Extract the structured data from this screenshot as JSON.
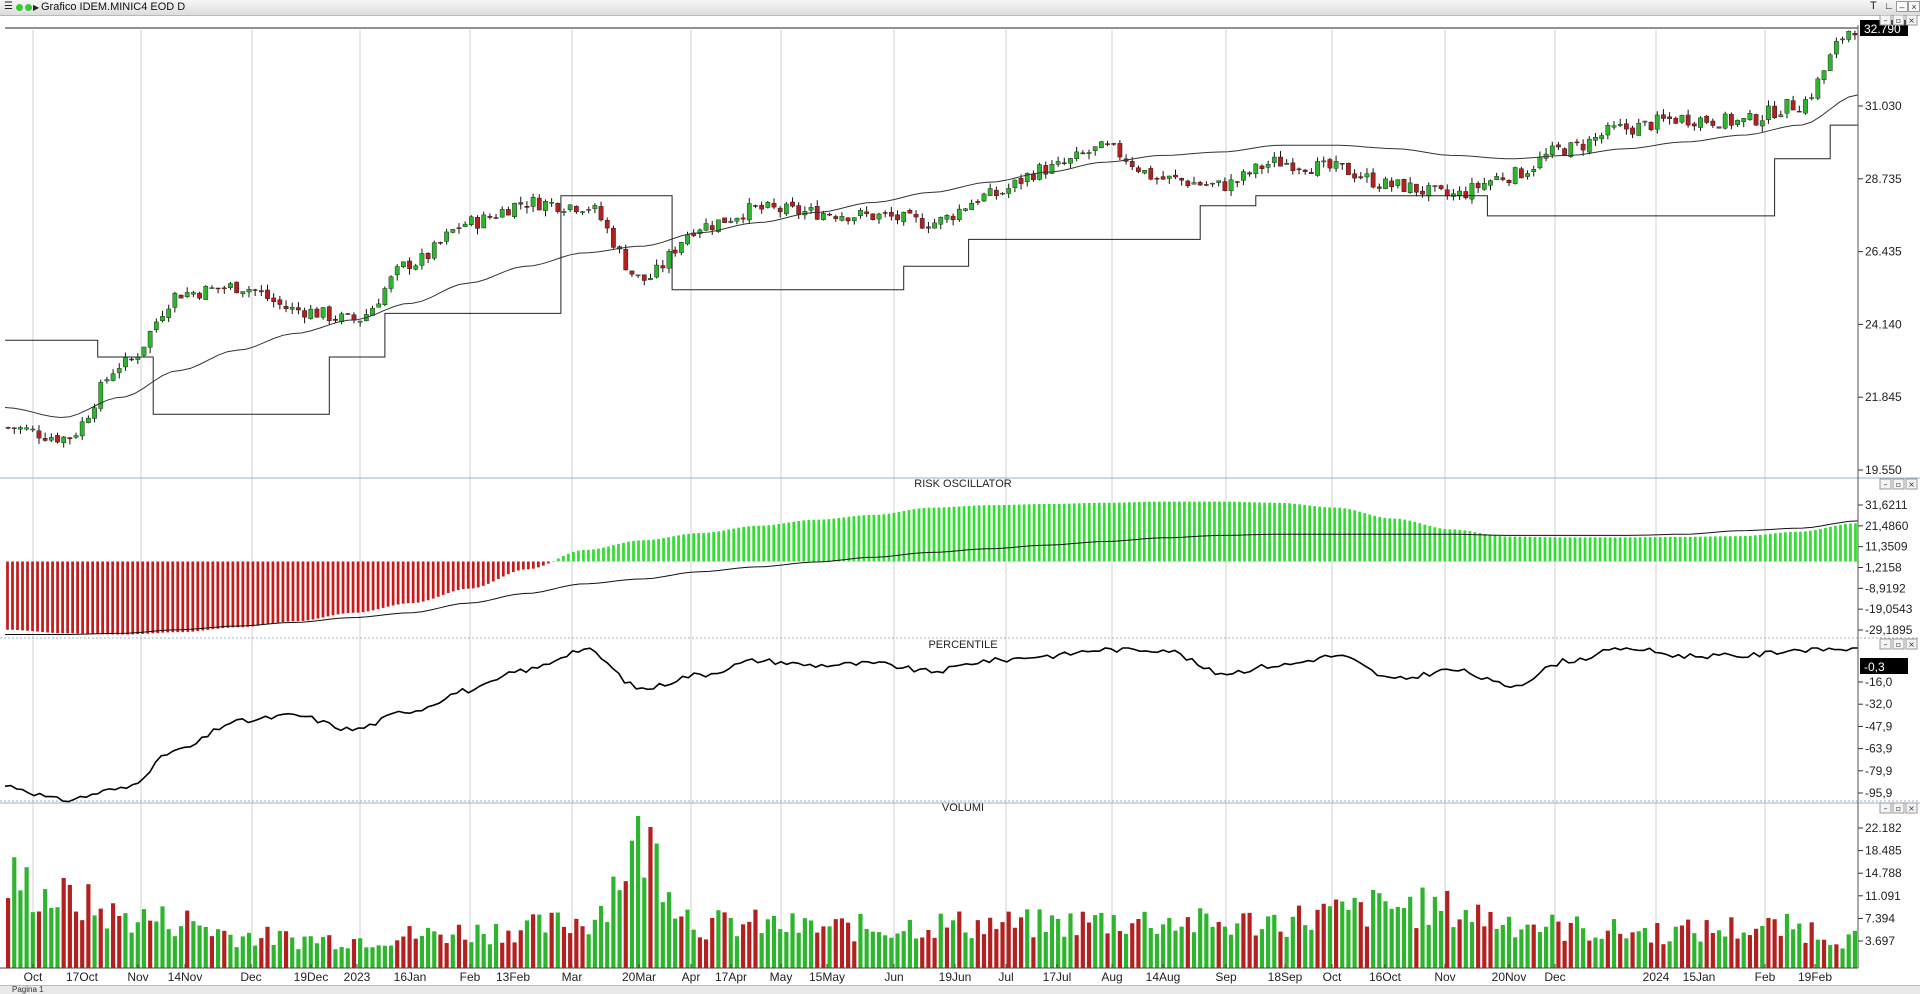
{
  "window": {
    "title": "Grafico IDEM.MINIC4 EOD D",
    "tab_label": "Pagina 1"
  },
  "colors": {
    "up": "#2db52d",
    "down": "#b22020",
    "osc_pos": "#33dd33",
    "osc_neg": "#c41c1c",
    "line": "#000000",
    "grid": "#d0d0d0",
    "separator": "#9ab3c9"
  },
  "price_panel": {
    "ymin": 19.55,
    "ymax": 32.79,
    "y_labels": [
      "31.030",
      "28.735",
      "26.435",
      "24.140",
      "21.845",
      "19.550"
    ],
    "last_price_label": "32.790"
  },
  "oscillator_panel": {
    "title": "RISK OSCILLATOR",
    "y_labels": [
      "31,6211",
      "21,4860",
      "11,3509",
      "1,2158",
      "-8,9192",
      "-19,0543",
      "-29,1895"
    ]
  },
  "percentile_panel": {
    "title": "PERCENTILE",
    "y_labels": [
      "-16,0",
      "-32,0",
      "-47,9",
      "-63,9",
      "-79,9",
      "-95,9"
    ],
    "last_value_label": "-0,3"
  },
  "volume_panel": {
    "title": "VOLUMI",
    "y_labels": [
      "22.182",
      "18.485",
      "14.788",
      "11.091",
      "7.394",
      "3.697"
    ]
  },
  "x_axis": {
    "labels": [
      "Oct",
      "17Oct",
      "Nov",
      "14Nov",
      "Dec",
      "19Dec",
      "2023",
      "16Jan",
      "Feb",
      "13Feb",
      "Mar",
      "20Mar",
      "Apr",
      "17Apr",
      "May",
      "15May",
      "Jun",
      "19Jun",
      "Jul",
      "17Jul",
      "Aug",
      "14Aug",
      "Sep",
      "18Sep",
      "Oct",
      "16Oct",
      "Nov",
      "20Nov",
      "Dec",
      "2024",
      "15Jan",
      "Feb",
      "19Feb"
    ]
  },
  "chart_data": [
    {
      "type": "candlestick",
      "title": "Grafico IDEM.MINIC4 EOD D",
      "x": [
        "Oct",
        "17Oct",
        "Nov",
        "14Nov",
        "Dec",
        "19Dec",
        "2023",
        "16Jan",
        "Feb",
        "13Feb",
        "Mar",
        "20Mar",
        "Apr",
        "17Apr",
        "May",
        "15May",
        "Jun",
        "19Jun",
        "Jul",
        "17Jul",
        "Aug",
        "14Aug",
        "Sep",
        "18Sep",
        "Oct",
        "16Oct",
        "Nov",
        "20Nov",
        "Dec",
        "2024",
        "15Jan",
        "Feb",
        "19Feb"
      ],
      "series": [
        {
          "values": [
            20.9,
            20.6,
            22.8,
            24.9,
            25.1,
            24.4,
            24.1,
            25.8,
            27.0,
            27.6,
            27.5,
            25.3,
            26.9,
            27.4,
            27.3,
            27.2,
            27.0,
            27.8,
            28.6,
            29.2,
            28.3,
            28.1,
            28.8,
            28.6,
            28.1,
            27.8,
            28.4,
            29.2,
            29.8,
            30.1,
            30.0,
            30.5,
            32.8
          ]
        },
        {
          "values": [
            21.5,
            21.2,
            21.8,
            22.6,
            23.2,
            23.7,
            24.1,
            24.6,
            25.2,
            25.7,
            26.1,
            26.3,
            26.7,
            27.0,
            27.3,
            27.6,
            27.9,
            28.2,
            28.5,
            28.8,
            29.0,
            29.1,
            29.3,
            29.3,
            29.2,
            29.0,
            28.9,
            29.0,
            29.2,
            29.4,
            29.6,
            29.9,
            30.8
          ]
        },
        {
          "values": [
            23.5,
            23.5,
            23.0,
            21.3,
            21.3,
            21.3,
            23.0,
            24.3,
            24.3,
            24.3,
            27.8,
            27.8,
            25.0,
            25.0,
            25.0,
            25.0,
            25.7,
            26.5,
            26.5,
            26.5,
            26.5,
            27.5,
            27.8,
            27.8,
            27.8,
            27.8,
            27.2,
            27.2,
            27.2,
            27.2,
            27.2,
            28.9,
            29.9
          ]
        }
      ]
    },
    {
      "type": "bar",
      "title": "RISK OSCILLATOR",
      "x": [
        "Oct",
        "17Oct",
        "Nov",
        "14Nov",
        "Dec",
        "19Dec",
        "2023",
        "16Jan",
        "Feb",
        "13Feb",
        "Mar",
        "20Mar",
        "Apr",
        "17Apr",
        "May",
        "15May",
        "Jun",
        "19Jun",
        "Jul",
        "17Jul",
        "Aug",
        "14Aug",
        "Sep",
        "18Sep",
        "Oct",
        "16Oct",
        "Nov",
        "20Nov",
        "Dec",
        "2024",
        "15Jan",
        "Feb",
        "19Feb"
      ],
      "ylim": [
        -29.1895,
        31.6211
      ],
      "series": [
        {
          "values": [
            -27,
            -28.5,
            -29,
            -28,
            -26,
            -23.5,
            -20,
            -16,
            -10,
            -2,
            6,
            10,
            13,
            16,
            18.5,
            20.5,
            23.5,
            24.5,
            25,
            25.5,
            26,
            26,
            25.5,
            23.5,
            19,
            14.5,
            11.5,
            11.2,
            11.2,
            11.4,
            11.7,
            13.5,
            17
          ]
        },
        {
          "values": [
            -29,
            -29,
            -28.5,
            -27,
            -25.5,
            -24,
            -22,
            -20,
            -16,
            -12,
            -8,
            -6,
            -3,
            -1,
            1,
            3,
            5,
            6.5,
            8,
            9.5,
            11,
            12,
            12.5,
            12.5,
            12.5,
            12.5,
            12,
            12,
            12,
            12.5,
            14,
            15,
            18
          ]
        }
      ]
    },
    {
      "type": "line",
      "title": "PERCENTILE",
      "x": [
        "Oct",
        "17Oct",
        "Nov",
        "14Nov",
        "Dec",
        "19Dec",
        "2023",
        "16Jan",
        "Feb",
        "13Feb",
        "Mar",
        "20Mar",
        "Apr",
        "17Apr",
        "May",
        "15May",
        "Jun",
        "19Jun",
        "Jul",
        "17Jul",
        "Aug",
        "14Aug",
        "Sep",
        "18Sep",
        "Oct",
        "16Oct",
        "Nov",
        "20Nov",
        "Dec",
        "2024",
        "15Jan",
        "Feb",
        "19Feb"
      ],
      "ylim": [
        -97,
        0
      ],
      "series": [
        {
          "values": [
            -88,
            -97,
            -90,
            -65,
            -47,
            -43,
            -52,
            -40,
            -27,
            -14,
            -1,
            -26,
            -17,
            -8,
            -11,
            -10,
            -15,
            -8,
            -5,
            -1,
            -1,
            -16,
            -11,
            -5,
            -20,
            -14,
            -24,
            -8,
            0,
            -5,
            -5,
            -1,
            -0.3
          ]
        }
      ]
    },
    {
      "type": "bar",
      "title": "VOLUMI",
      "x": [
        "Oct",
        "17Oct",
        "Nov",
        "14Nov",
        "Dec",
        "19Dec",
        "2023",
        "16Jan",
        "Feb",
        "13Feb",
        "Mar",
        "20Mar",
        "Apr",
        "17Apr",
        "May",
        "15May",
        "Jun",
        "19Jun",
        "Jul",
        "17Jul",
        "Aug",
        "14Aug",
        "Sep",
        "18Sep",
        "Oct",
        "16Oct",
        "Nov",
        "20Nov",
        "Dec",
        "2024",
        "15Jan",
        "Feb",
        "19Feb"
      ],
      "ylim": [
        0,
        22.182
      ],
      "series": [
        {
          "values": [
            12.0,
            9.5,
            7.0,
            6.5,
            4.5,
            4.0,
            4.0,
            4.5,
            5.0,
            5.5,
            6.5,
            17.0,
            6.0,
            6.0,
            5.5,
            5.5,
            6.0,
            6.0,
            6.0,
            6.5,
            6.5,
            6.0,
            6.5,
            7.5,
            8.5,
            8.0,
            6.5,
            5.5,
            5.0,
            5.0,
            5.5,
            5.5,
            4.0
          ]
        }
      ]
    }
  ]
}
